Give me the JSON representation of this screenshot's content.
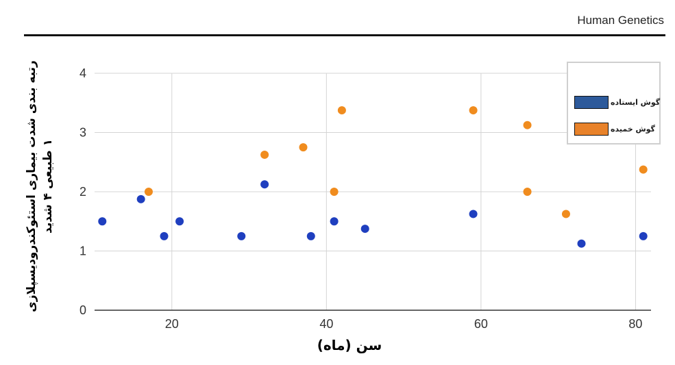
{
  "header": {
    "journal": "Human Genetics"
  },
  "chart_data": {
    "type": "scatter",
    "xlabel": "سن (ماه)",
    "ylabel_lines": [
      "رتبه بندی شدت بیماری استئوکندرودیسپلازی",
      "۱ طبیعی ۴ شدید"
    ],
    "xlim": [
      10,
      82
    ],
    "ylim": [
      0,
      4
    ],
    "xticks": [
      20,
      40,
      60,
      80
    ],
    "yticks": [
      0,
      1,
      2,
      3,
      4
    ],
    "grid": true,
    "legend_position": "top-right",
    "series": [
      {
        "name": "گوش ایستاده",
        "color": "#1f3fbf",
        "swatch_color": "#2d5a9b",
        "points": [
          [
            11,
            1.5
          ],
          [
            16,
            1.875
          ],
          [
            19,
            1.25
          ],
          [
            21,
            1.5
          ],
          [
            29,
            1.25
          ],
          [
            32,
            2.125
          ],
          [
            38,
            1.25
          ],
          [
            41,
            1.5
          ],
          [
            45,
            1.375
          ],
          [
            59,
            1.625
          ],
          [
            73,
            1.125
          ],
          [
            81,
            1.25
          ]
        ]
      },
      {
        "name": "گوش خمیده",
        "color": "#f08c1e",
        "swatch_color": "#e8822a",
        "points": [
          [
            17,
            2.0
          ],
          [
            32,
            2.625
          ],
          [
            37,
            2.75
          ],
          [
            41,
            2.0
          ],
          [
            42,
            3.375
          ],
          [
            59,
            3.375
          ],
          [
            66,
            3.125
          ],
          [
            66,
            2.0
          ],
          [
            71,
            1.625
          ],
          [
            81,
            2.375
          ]
        ]
      }
    ]
  }
}
